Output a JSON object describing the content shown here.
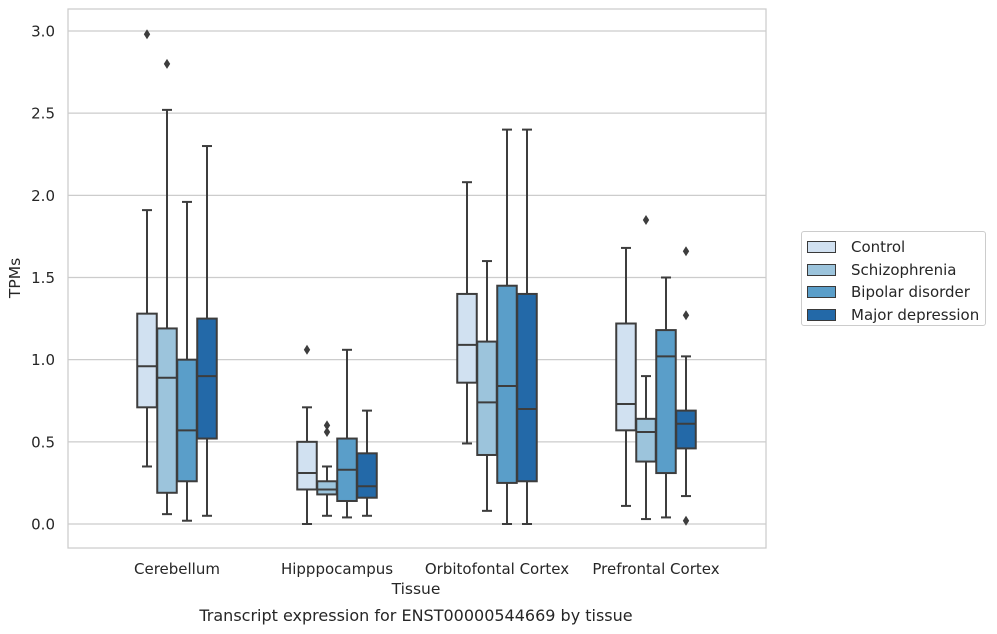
{
  "chart_data": {
    "type": "box",
    "categories": [
      "Cerebellum",
      "Hipppocampus",
      "Orbitofontal Cortex",
      "Prefrontal Cortex"
    ],
    "xlabel": "Tissue",
    "ylabel": "TPMs",
    "ylim": [
      -0.14,
      3.13
    ],
    "yticks": [
      0.0,
      0.5,
      1.0,
      1.5,
      2.0,
      2.5,
      3.0
    ],
    "ytick_labels": [
      "0.0",
      "0.5",
      "1.0",
      "1.5",
      "2.0",
      "2.5",
      "3.0"
    ],
    "grid": "y",
    "legend_position": "right",
    "series": [
      {
        "name": "Control",
        "color": "#d1e1f1",
        "boxes": [
          {
            "whisker_low": 0.35,
            "q1": 0.71,
            "median": 0.96,
            "q3": 1.28,
            "whisker_high": 1.91,
            "outliers": [
              2.98
            ]
          },
          {
            "whisker_low": 0.0,
            "q1": 0.21,
            "median": 0.31,
            "q3": 0.5,
            "whisker_high": 0.71,
            "outliers": [
              1.06
            ]
          },
          {
            "whisker_low": 0.49,
            "q1": 0.86,
            "median": 1.09,
            "q3": 1.4,
            "whisker_high": 2.08,
            "outliers": []
          },
          {
            "whisker_low": 0.11,
            "q1": 0.57,
            "median": 0.73,
            "q3": 1.22,
            "whisker_high": 1.68,
            "outliers": []
          }
        ]
      },
      {
        "name": "Schizophrenia",
        "color": "#9cc4dc",
        "boxes": [
          {
            "whisker_low": 0.06,
            "q1": 0.19,
            "median": 0.89,
            "q3": 1.19,
            "whisker_high": 2.52,
            "outliers": [
              2.8
            ]
          },
          {
            "whisker_low": 0.05,
            "q1": 0.18,
            "median": 0.21,
            "q3": 0.26,
            "whisker_high": 0.35,
            "outliers": [
              0.6,
              0.56
            ]
          },
          {
            "whisker_low": 0.08,
            "q1": 0.42,
            "median": 0.74,
            "q3": 1.11,
            "whisker_high": 1.6,
            "outliers": []
          },
          {
            "whisker_low": 0.03,
            "q1": 0.38,
            "median": 0.56,
            "q3": 0.64,
            "whisker_high": 0.9,
            "outliers": [
              1.85
            ]
          }
        ]
      },
      {
        "name": "Bipolar disorder",
        "color": "#5a9ec9",
        "boxes": [
          {
            "whisker_low": 0.02,
            "q1": 0.26,
            "median": 0.57,
            "q3": 1.0,
            "whisker_high": 1.96,
            "outliers": []
          },
          {
            "whisker_low": 0.04,
            "q1": 0.14,
            "median": 0.33,
            "q3": 0.52,
            "whisker_high": 1.06,
            "outliers": []
          },
          {
            "whisker_low": 0.0,
            "q1": 0.25,
            "median": 0.84,
            "q3": 1.45,
            "whisker_high": 2.4,
            "outliers": []
          },
          {
            "whisker_low": 0.04,
            "q1": 0.31,
            "median": 1.02,
            "q3": 1.18,
            "whisker_high": 1.5,
            "outliers": []
          }
        ]
      },
      {
        "name": "Major depression",
        "color": "#2369a8",
        "boxes": [
          {
            "whisker_low": 0.05,
            "q1": 0.52,
            "median": 0.9,
            "q3": 1.25,
            "whisker_high": 2.3,
            "outliers": []
          },
          {
            "whisker_low": 0.05,
            "q1": 0.16,
            "median": 0.23,
            "q3": 0.43,
            "whisker_high": 0.69,
            "outliers": []
          },
          {
            "whisker_low": 0.0,
            "q1": 0.26,
            "median": 0.7,
            "q3": 1.4,
            "whisker_high": 2.4,
            "outliers": []
          },
          {
            "whisker_low": 0.17,
            "q1": 0.46,
            "median": 0.61,
            "q3": 0.69,
            "whisker_high": 1.02,
            "outliers": [
              1.66,
              1.27,
              0.02
            ]
          }
        ]
      }
    ]
  },
  "caption": "Transcript expression for ENST00000544669 by tissue"
}
